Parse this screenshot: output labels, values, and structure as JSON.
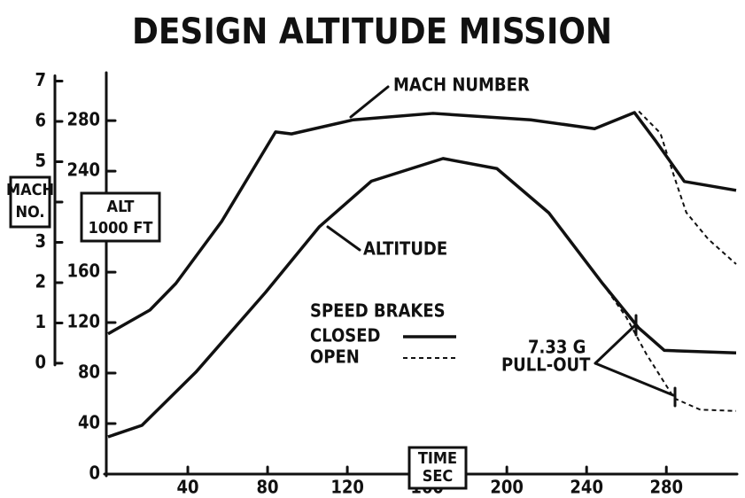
{
  "chart_data": {
    "type": "line",
    "title": "DESIGN ALTITUDE MISSION",
    "xlabel": [
      "TIME",
      "SEC"
    ],
    "ylabel": [
      "ALT",
      "1000 FT"
    ],
    "y2label": [
      "MACH",
      "NO."
    ],
    "xlim": [
      0,
      315
    ],
    "xticks": [
      40,
      80,
      120,
      160,
      200,
      240,
      280
    ],
    "ylim": [
      0,
      318
    ],
    "yticks": [
      0,
      40,
      80,
      120,
      160,
      240,
      280
    ],
    "y2lim": [
      -2.75,
      7.21
    ],
    "y2ticks": [
      0,
      1,
      2,
      3,
      4,
      5,
      6,
      7
    ],
    "color": "#111111",
    "legend": {
      "title": "SPEED BRAKES",
      "entries": [
        {
          "label": "CLOSED",
          "dashed": false
        },
        {
          "label": "OPEN",
          "dashed": true
        }
      ]
    },
    "series": [
      {
        "label": "MACH NUMBER",
        "axis": "y2",
        "closed": {
          "x": [
            0,
            21,
            34,
            57,
            84,
            92,
            123,
            163,
            212,
            244,
            264,
            275,
            289,
            315
          ],
          "values": [
            0.73,
            1.32,
            1.98,
            3.52,
            5.74,
            5.69,
            6.04,
            6.2,
            6.04,
            5.82,
            6.22,
            5.49,
            4.51,
            4.29
          ]
        },
        "open": {
          "x": [
            244,
            266,
            277,
            284,
            290,
            301,
            315
          ],
          "values": [
            5.82,
            6.26,
            5.71,
            4.62,
            3.74,
            3.08,
            2.46
          ]
        }
      },
      {
        "label": "ALTITUDE",
        "axis": "y",
        "closed": {
          "x": [
            0,
            17,
            44,
            79,
            106,
            132,
            168,
            195,
            221,
            248,
            266,
            279,
            315
          ],
          "values": [
            29.5,
            38.6,
            80.7,
            144,
            196,
            232,
            250,
            242,
            207,
            151,
            116,
            98,
            96
          ]
        },
        "open": {
          "x": [
            248,
            260,
            270,
            284,
            297,
            315
          ],
          "values": [
            151,
            124,
            95,
            60,
            51,
            50
          ]
        }
      }
    ],
    "annotations": [
      "7.33 G",
      "PULL-OUT"
    ]
  }
}
